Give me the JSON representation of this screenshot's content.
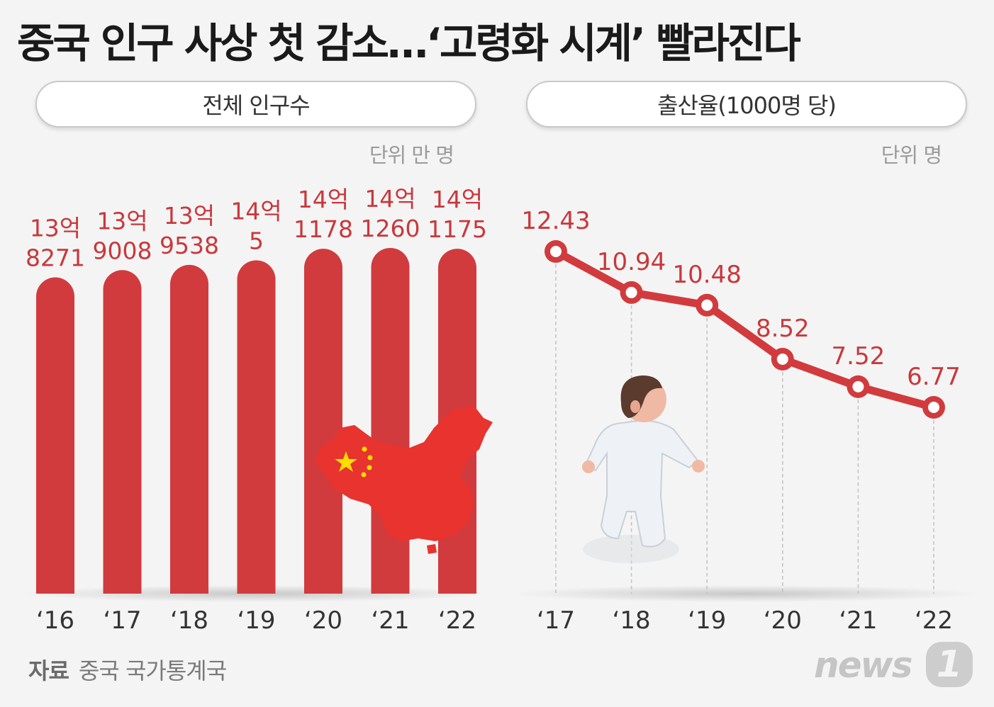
{
  "title": "중국 인구 사상 첫 감소…‘고령화 시계’ 빨라진다",
  "source_label": "자료",
  "source_text": "중국 국가통계국",
  "logo": "news",
  "logo_number": "1",
  "colors": {
    "bar": "#d13b3e",
    "line": "#d13b3e",
    "label": "#c9383c",
    "tick": "#333333"
  },
  "chart_data": [
    {
      "type": "bar",
      "title": "전체 인구수",
      "unit": "단위 만 명",
      "categories": [
        "‘16",
        "‘17",
        "‘18",
        "‘19",
        "‘20",
        "‘21",
        "‘22"
      ],
      "values": [
        138271,
        139008,
        139538,
        140005,
        141178,
        141260,
        141175
      ],
      "data_labels": [
        [
          "13억",
          "8271"
        ],
        [
          "13억",
          "9008"
        ],
        [
          "13억",
          "9538"
        ],
        [
          "14억",
          "5"
        ],
        [
          "14억",
          "1178"
        ],
        [
          "14억",
          "1260"
        ],
        [
          "14억",
          "1175"
        ]
      ]
    },
    {
      "type": "line",
      "title": "출산율(1000명 당)",
      "unit": "단위 명",
      "categories": [
        "‘17",
        "‘18",
        "‘19",
        "‘20",
        "‘21",
        "‘22"
      ],
      "values": [
        12.43,
        10.94,
        10.48,
        8.52,
        7.52,
        6.77
      ],
      "data_labels": [
        "12.43",
        "10.94",
        "10.48",
        "8.52",
        "7.52",
        "6.77"
      ]
    }
  ]
}
